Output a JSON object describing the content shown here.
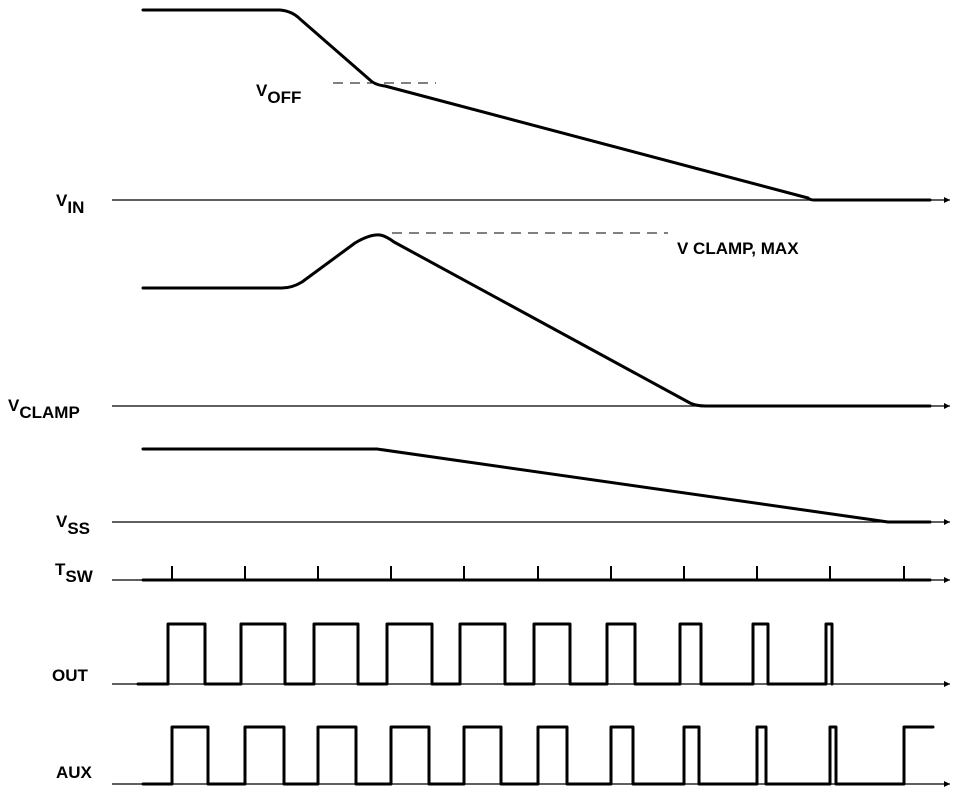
{
  "signals": {
    "vin": {
      "main": "V",
      "sub": "IN"
    },
    "vclamp": {
      "main": "V",
      "sub": "CLAMP"
    },
    "vss": {
      "main": "V",
      "sub": "SS"
    },
    "tsw": {
      "main": "T",
      "sub": "SW"
    },
    "out": {
      "main": "OUT"
    },
    "aux": {
      "main": "AUX"
    }
  },
  "annotations": {
    "voff": {
      "main": "V",
      "sub": "OFF"
    },
    "vclamp_max": "V CLAMP, MAX"
  },
  "colors": {
    "line": "#000000",
    "background": "#ffffff"
  }
}
